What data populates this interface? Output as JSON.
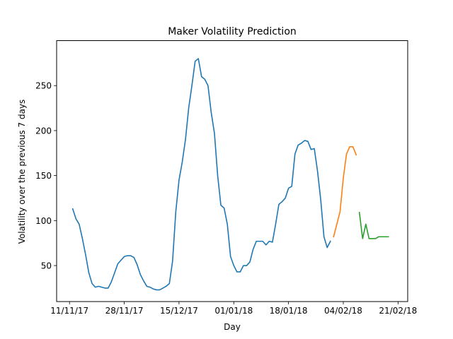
{
  "chart_data": {
    "type": "line",
    "title": "Maker Volatility Prediction",
    "xlabel": "Day",
    "ylabel": "Volatility over the previous 7 days",
    "xlim": [
      "2017-11-07",
      "2018-02-24"
    ],
    "ylim": [
      10,
      300
    ],
    "x_ticks": [
      {
        "date": "2017-11-11",
        "label": "11/11/17"
      },
      {
        "date": "2017-11-28",
        "label": "28/11/17"
      },
      {
        "date": "2017-12-15",
        "label": "15/12/17"
      },
      {
        "date": "2018-01-01",
        "label": "01/01/18"
      },
      {
        "date": "2018-01-18",
        "label": "18/01/18"
      },
      {
        "date": "2018-02-04",
        "label": "04/02/18"
      },
      {
        "date": "2018-02-21",
        "label": "21/02/18"
      }
    ],
    "y_ticks": [
      50,
      100,
      150,
      200,
      250
    ],
    "grid": false,
    "series": [
      {
        "color": "#1f77b4",
        "x": [
          "2017-11-12",
          "2017-11-13",
          "2017-11-14",
          "2017-11-15",
          "2017-11-16",
          "2017-11-17",
          "2017-11-18",
          "2017-11-19",
          "2017-11-20",
          "2017-11-21",
          "2017-11-22",
          "2017-11-23",
          "2017-11-24",
          "2017-11-25",
          "2017-11-26",
          "2017-11-27",
          "2017-11-28",
          "2017-11-29",
          "2017-11-30",
          "2017-12-01",
          "2017-12-02",
          "2017-12-03",
          "2017-12-04",
          "2017-12-05",
          "2017-12-06",
          "2017-12-07",
          "2017-12-08",
          "2017-12-09",
          "2017-12-10",
          "2017-12-11",
          "2017-12-12",
          "2017-12-13",
          "2017-12-14",
          "2017-12-15",
          "2017-12-16",
          "2017-12-17",
          "2017-12-18",
          "2017-12-19",
          "2017-12-20",
          "2017-12-21",
          "2017-12-22",
          "2017-12-23",
          "2017-12-24",
          "2017-12-25",
          "2017-12-26",
          "2017-12-27",
          "2017-12-28",
          "2017-12-29",
          "2017-12-30",
          "2017-12-31",
          "2018-01-01",
          "2018-01-02",
          "2018-01-03",
          "2018-01-04",
          "2018-01-05",
          "2018-01-06",
          "2018-01-07",
          "2018-01-08",
          "2018-01-09",
          "2018-01-10",
          "2018-01-11",
          "2018-01-12",
          "2018-01-13",
          "2018-01-14",
          "2018-01-15",
          "2018-01-16",
          "2018-01-17",
          "2018-01-18",
          "2018-01-19",
          "2018-01-20",
          "2018-01-21",
          "2018-01-22",
          "2018-01-23",
          "2018-01-24",
          "2018-01-25",
          "2018-01-26",
          "2018-01-27",
          "2018-01-28",
          "2018-01-29",
          "2018-01-30",
          "2018-01-31"
        ],
        "values": [
          113,
          102,
          96,
          80,
          62,
          42,
          30,
          26,
          27,
          26,
          25,
          25,
          32,
          42,
          52,
          56,
          60,
          61,
          61,
          59,
          51,
          40,
          33,
          27,
          26,
          24,
          23,
          23,
          25,
          27,
          30,
          55,
          110,
          145,
          165,
          190,
          225,
          250,
          277,
          280,
          260,
          257,
          250,
          220,
          197,
          150,
          117,
          114,
          96,
          60,
          50,
          43,
          43,
          50,
          50,
          54,
          68,
          77,
          77,
          77,
          73,
          77,
          76,
          96,
          118,
          121,
          125,
          136,
          138,
          174,
          184,
          186,
          189,
          188,
          179,
          180,
          155,
          123,
          82,
          70,
          77
        ]
      },
      {
        "color": "#ff7f0e",
        "x": [
          "2018-02-01",
          "2018-02-02",
          "2018-02-03",
          "2018-02-04",
          "2018-02-05",
          "2018-02-06",
          "2018-02-07",
          "2018-02-08"
        ],
        "values": [
          82,
          96,
          110,
          147,
          174,
          182,
          182,
          173
        ]
      },
      {
        "color": "#2ca02c",
        "x": [
          "2018-02-09",
          "2018-02-10",
          "2018-02-11",
          "2018-02-12",
          "2018-02-13",
          "2018-02-14",
          "2018-02-15",
          "2018-02-16",
          "2018-02-17",
          "2018-02-18"
        ],
        "values": [
          109,
          80,
          96,
          80,
          80,
          80,
          82,
          82,
          82,
          82
        ]
      }
    ]
  }
}
